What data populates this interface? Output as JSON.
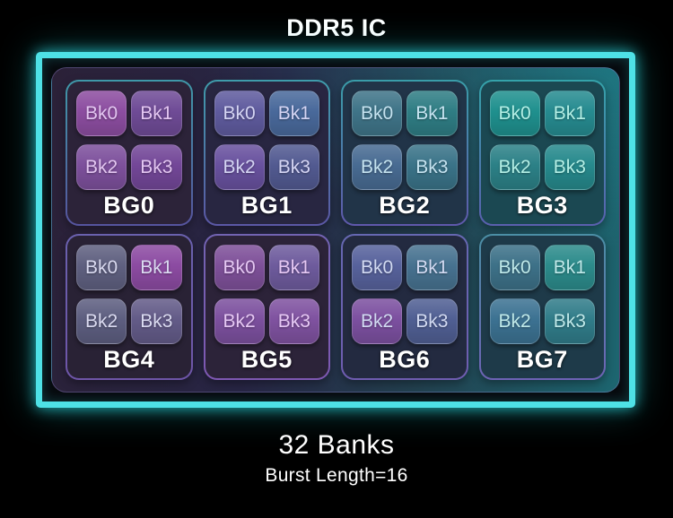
{
  "title": "DDR5 IC",
  "frame": {
    "border_color": "#4ee1e6",
    "glow_color": "#2ad8de"
  },
  "panel": {
    "gradient_left": "#2b2138",
    "gradient_mid": "#272544",
    "gradient_mid2": "#22404f",
    "gradient_right": "#1d6670",
    "highlight": "#1fa4ae"
  },
  "bank_groups": [
    {
      "label": "BG0",
      "banks": [
        "Bk0",
        "Bk1",
        "Bk2",
        "Bk3"
      ],
      "fill": "#2c2339",
      "border_top": "#3f98a8",
      "border_bottom": "#56549e",
      "text_color": "#e3c6f1",
      "tile_colors": [
        "#8c4da0",
        "#6f4b96",
        "#7d509c",
        "#734798"
      ]
    },
    {
      "label": "BG1",
      "banks": [
        "Bk0",
        "Bk1",
        "Bk2",
        "Bk3"
      ],
      "fill": "#282641",
      "border_top": "#3f9cab",
      "border_bottom": "#5b57a5",
      "text_color": "#d5d5f4",
      "tile_colors": [
        "#5f5b9e",
        "#49699b",
        "#68519e",
        "#525a91"
      ]
    },
    {
      "label": "BG2",
      "banks": [
        "Bk0",
        "Bk1",
        "Bk2",
        "Bk3"
      ],
      "fill": "#213448",
      "border_top": "#3a9da9",
      "border_bottom": "#5f58ab",
      "text_color": "#c5e3f0",
      "tile_colors": [
        "#3f7488",
        "#2f7d84",
        "#486b92",
        "#3a7388"
      ]
    },
    {
      "label": "BG3",
      "banks": [
        "Bk0",
        "Bk1",
        "Bk2",
        "Bk3"
      ],
      "fill": "#1b4852",
      "border_top": "#35a3aa",
      "border_bottom": "#5a5fae",
      "text_color": "#b4f0e6",
      "tile_colors": [
        "#1f908e",
        "#268b90",
        "#2c8187",
        "#26898c"
      ]
    },
    {
      "label": "BG4",
      "banks": [
        "Bk0",
        "Bk1",
        "Bk2",
        "Bk3"
      ],
      "fill": "#292235",
      "border_top": "#6a61ae",
      "border_bottom": "#6e55a8",
      "text_color": "#dadaf0",
      "tile_colors": [
        "#5f6080",
        "#8c4ba2",
        "#5d5e80",
        "#635b88"
      ]
    },
    {
      "label": "BG5",
      "banks": [
        "Bk0",
        "Bk1",
        "Bk2",
        "Bk3"
      ],
      "fill": "#2c2339",
      "border_top": "#7263b2",
      "border_bottom": "#7e58b2",
      "text_color": "#e6c8f4",
      "tile_colors": [
        "#7e5099",
        "#6e5b9d",
        "#7c509e",
        "#7f52a0"
      ]
    },
    {
      "label": "BG6",
      "banks": [
        "Bk0",
        "Bk1",
        "Bk2",
        "Bk3"
      ],
      "fill": "#232a40",
      "border_top": "#6668b2",
      "border_bottom": "#6f5cb0",
      "text_color": "#d2daf2",
      "tile_colors": [
        "#57629c",
        "#477290",
        "#7c50a0",
        "#505f93"
      ]
    },
    {
      "label": "BG7",
      "banks": [
        "Bk0",
        "Bk1",
        "Bk2",
        "Bk3"
      ],
      "fill": "#1e3a49",
      "border_top": "#4b8fa5",
      "border_bottom": "#6e62b5",
      "text_color": "#bfe9e9",
      "tile_colors": [
        "#3d7188",
        "#2c8b8b",
        "#3c7292",
        "#307c89"
      ]
    }
  ],
  "footer": {
    "line1": "32 Banks",
    "line2": "Burst Length=16"
  }
}
